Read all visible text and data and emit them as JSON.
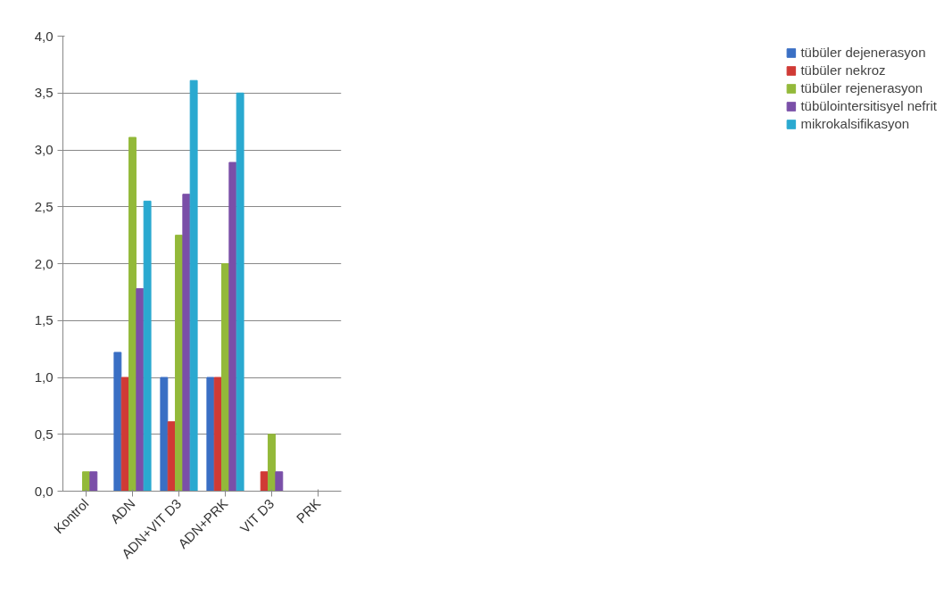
{
  "chart_data": {
    "type": "bar",
    "categories": [
      "Kontrol",
      "ADN",
      "ADN+VIT D3",
      "ADN+PRK",
      "VIT D3",
      "PRK"
    ],
    "series": [
      {
        "name": "tübüler dejenerasyon",
        "color": "#3a6fc4",
        "values": [
          0,
          1.22,
          1.0,
          1.0,
          0,
          0
        ]
      },
      {
        "name": "tübüler nekroz",
        "color": "#d03a35",
        "values": [
          0,
          1.0,
          0.61,
          1.0,
          0.17,
          0
        ]
      },
      {
        "name": "tübüler rejenerasyon",
        "color": "#93b93a",
        "values": [
          0.17,
          3.11,
          2.25,
          2.0,
          0.5,
          0
        ]
      },
      {
        "name": "tübülointersitisyel nefrit",
        "color": "#7a4fa8",
        "values": [
          0.17,
          1.78,
          2.61,
          2.89,
          0.17,
          0
        ]
      },
      {
        "name": "mikrokalsifikasyon",
        "color": "#2aa9d0",
        "values": [
          0,
          2.55,
          3.61,
          3.5,
          0,
          0
        ]
      }
    ],
    "ylim": [
      0,
      4
    ],
    "yticks": [
      {
        "value": 0,
        "label": "0,0"
      },
      {
        "value": 0.5,
        "label": "0,5"
      },
      {
        "value": 1,
        "label": "1,0"
      },
      {
        "value": 1.5,
        "label": "1,5"
      },
      {
        "value": 2,
        "label": "2,0"
      },
      {
        "value": 2.5,
        "label": "2,5"
      },
      {
        "value": 3,
        "label": "3,0"
      },
      {
        "value": 3.5,
        "label": "3,5"
      },
      {
        "value": 4,
        "label": "4,0"
      }
    ],
    "grid": "y",
    "legend": "right"
  }
}
